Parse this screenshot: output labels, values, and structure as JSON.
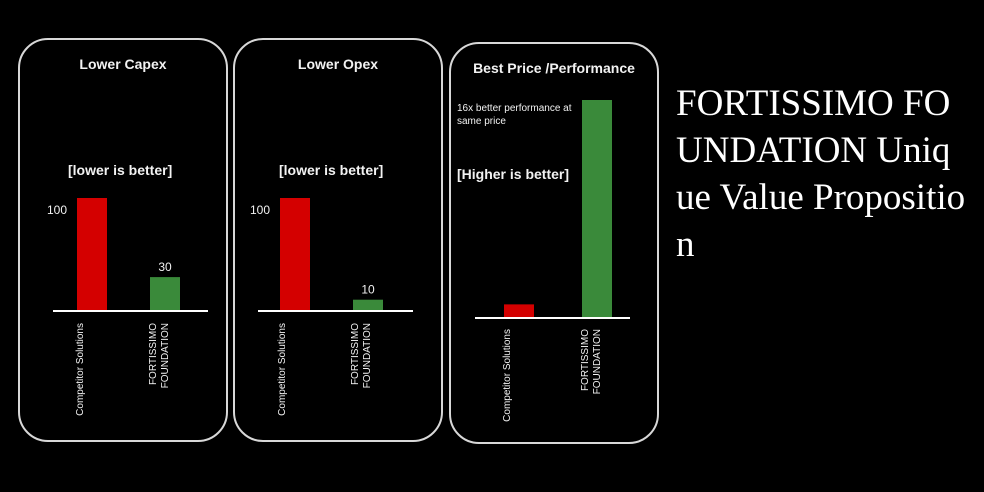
{
  "colors": {
    "competitor": "#d40000",
    "fortissimo": "#3a8a3a",
    "background": "#000000",
    "border": "#d8d8d8"
  },
  "headline": "FORTISSIMO FOUNDATION Unique Value Proposition",
  "chart_data": [
    {
      "type": "bar",
      "title": "Lower Capex",
      "note": "[lower is better]",
      "categories": [
        "Competitor Solutions",
        "FORTISSIMO FOUNDATION"
      ],
      "values": [
        100,
        30
      ],
      "value_labels": [
        "100",
        "30"
      ],
      "ylim": [
        0,
        100
      ],
      "colors": [
        "#d40000",
        "#3a8a3a"
      ]
    },
    {
      "type": "bar",
      "title": "Lower Opex",
      "note": "[lower is better]",
      "categories": [
        "Competitor Solutions",
        "FORTISSIMO FOUNDATION"
      ],
      "values": [
        100,
        10
      ],
      "value_labels": [
        "100",
        "10"
      ],
      "ylim": [
        0,
        100
      ],
      "colors": [
        "#d40000",
        "#3a8a3a"
      ]
    },
    {
      "type": "bar",
      "title": "Best Price /Performance",
      "note": "[Higher is better]",
      "annotation": "16x better performance at same price",
      "categories": [
        "Competitor Solutions",
        "FORTISSIMO FOUNDATION"
      ],
      "values": [
        1,
        16
      ],
      "value_labels": [],
      "ylim": [
        0,
        16
      ],
      "colors": [
        "#d40000",
        "#3a8a3a"
      ]
    }
  ]
}
